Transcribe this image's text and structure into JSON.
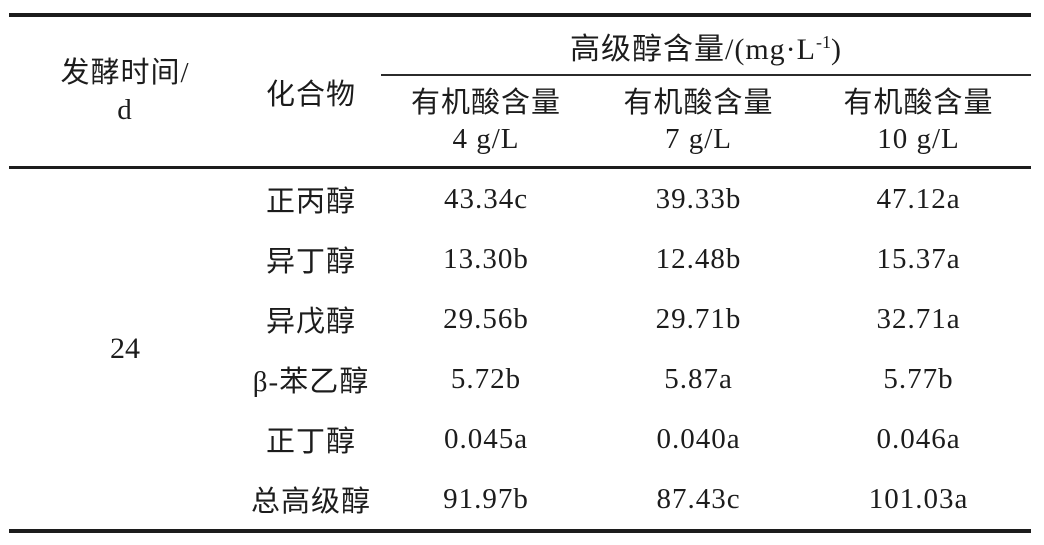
{
  "table": {
    "columns": {
      "fermentation_time": {
        "line1": "发酵时间/",
        "line2": "d"
      },
      "compound": "化合物",
      "group_header": {
        "text": "高级醇含量/(mg·L",
        "superscript": "-1",
        "close": ")"
      },
      "sub_headers": [
        {
          "line1": "有机酸含量",
          "line2": "4 g/L"
        },
        {
          "line1": "有机酸含量",
          "line2": "7 g/L"
        },
        {
          "line1": "有机酸含量",
          "line2": "10 g/L"
        }
      ]
    },
    "fermentation_time_value": "24",
    "rows": [
      {
        "compound": "正丙醇",
        "acid4": "43.34c",
        "acid7": "39.33b",
        "acid10": "47.12a"
      },
      {
        "compound": "异丁醇",
        "acid4": "13.30b",
        "acid7": "12.48b",
        "acid10": "15.37a"
      },
      {
        "compound": "异戊醇",
        "acid4": "29.56b",
        "acid7": "29.71b",
        "acid10": "32.71a"
      },
      {
        "compound": "β-苯乙醇",
        "acid4": "5.72b",
        "acid7": "5.87a",
        "acid10": "5.77b"
      },
      {
        "compound": "正丁醇",
        "acid4": "0.045a",
        "acid7": "0.040a",
        "acid10": "0.046a"
      },
      {
        "compound": "总高级醇",
        "acid4": "91.97b",
        "acid7": "87.43c",
        "acid10": "101.03a"
      }
    ]
  },
  "colors": {
    "text": "#1c1c1c",
    "rule": "#1c1c1c",
    "background": "#ffffff"
  },
  "chart_data": {
    "type": "table",
    "group_header": "高级醇含量/(mg·L⁻¹)",
    "columns": [
      "发酵时间/d",
      "化合物",
      "有机酸含量 4 g/L",
      "有机酸含量 7 g/L",
      "有机酸含量 10 g/L"
    ],
    "rows": [
      [
        "24",
        "正丙醇",
        "43.34c",
        "39.33b",
        "47.12a"
      ],
      [
        "24",
        "异丁醇",
        "13.30b",
        "12.48b",
        "15.37a"
      ],
      [
        "24",
        "异戊醇",
        "29.56b",
        "29.71b",
        "32.71a"
      ],
      [
        "24",
        "β-苯乙醇",
        "5.72b",
        "5.87a",
        "5.77b"
      ],
      [
        "24",
        "正丁醇",
        "0.045a",
        "0.040a",
        "0.046a"
      ],
      [
        "24",
        "总高级醇",
        "91.97b",
        "87.43c",
        "101.03a"
      ]
    ]
  }
}
